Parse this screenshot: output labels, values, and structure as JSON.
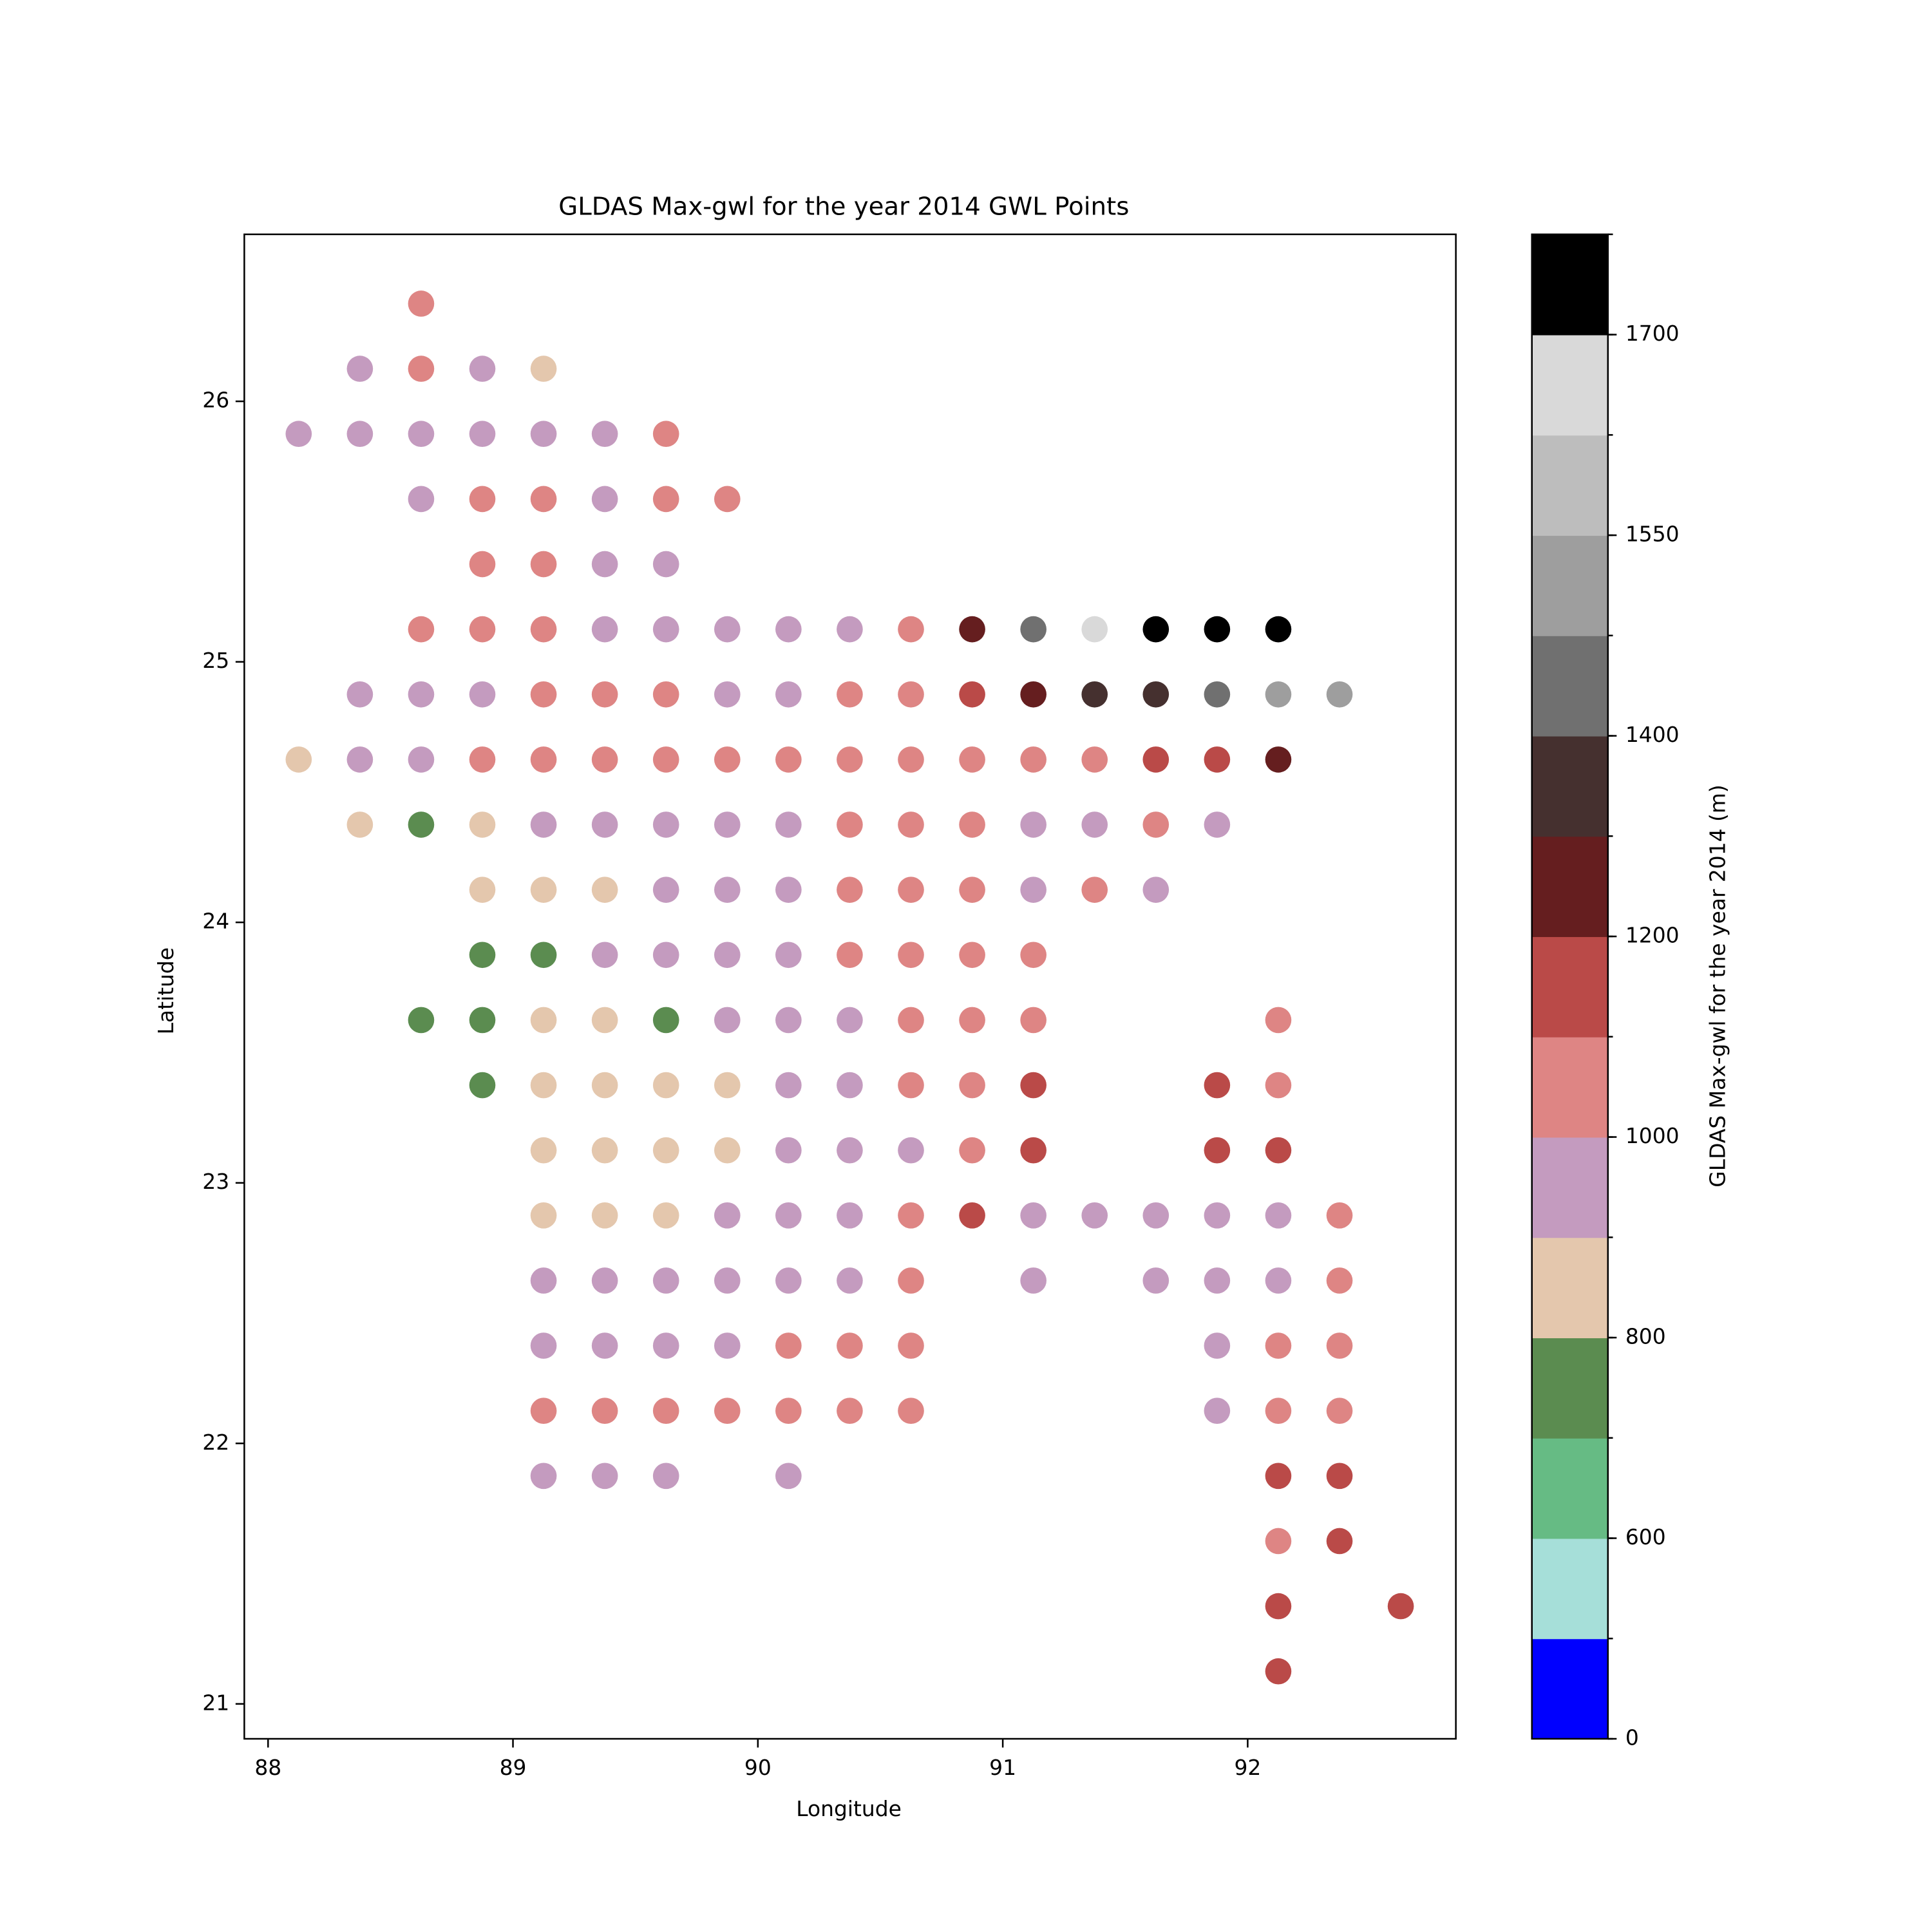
{
  "chart_data": {
    "type": "scatter",
    "title": "GLDAS Max-gwl for the year 2014 GWL Points",
    "x_label": "Longitude",
    "y_label": "Latitude",
    "xlim": [
      87.903,
      92.85
    ],
    "ylim": [
      20.866,
      26.641
    ],
    "xticks": [
      88,
      89,
      90,
      91,
      92
    ],
    "yticks": [
      21,
      22,
      23,
      24,
      25,
      26
    ],
    "x": [
      88.625,
      88.375,
      88.625,
      88.875,
      89.125,
      88.125,
      88.375,
      88.625,
      88.875,
      89.125,
      89.375,
      89.625,
      88.625,
      88.875,
      89.125,
      89.375,
      89.625,
      89.875,
      88.875,
      89.125,
      89.375,
      89.625,
      88.625,
      88.875,
      89.125,
      89.375,
      89.625,
      89.875,
      90.125,
      90.375,
      90.625,
      90.875,
      91.125,
      91.375,
      91.625,
      91.875,
      92.125,
      88.375,
      88.625,
      88.875,
      89.125,
      89.375,
      89.625,
      89.875,
      90.125,
      90.375,
      90.625,
      90.875,
      91.125,
      91.375,
      91.625,
      91.875,
      92.125,
      92.375,
      88.125,
      88.375,
      88.625,
      88.875,
      89.125,
      89.375,
      89.625,
      89.875,
      90.125,
      90.375,
      90.625,
      90.875,
      91.125,
      91.375,
      91.625,
      91.875,
      92.125,
      88.375,
      88.625,
      88.875,
      89.125,
      89.375,
      89.625,
      89.875,
      90.125,
      90.375,
      90.625,
      90.875,
      91.125,
      91.375,
      91.625,
      91.875,
      88.875,
      89.125,
      89.375,
      89.625,
      89.875,
      90.125,
      90.375,
      90.625,
      90.875,
      91.125,
      91.375,
      91.625,
      88.875,
      89.125,
      89.375,
      89.625,
      89.875,
      90.125,
      90.375,
      90.625,
      90.875,
      91.125,
      88.625,
      88.875,
      89.125,
      89.375,
      89.625,
      89.875,
      90.125,
      90.375,
      90.625,
      90.875,
      91.125,
      92.125,
      88.875,
      89.125,
      89.375,
      89.625,
      89.875,
      90.125,
      90.375,
      90.625,
      90.875,
      91.125,
      91.875,
      92.125,
      89.125,
      89.375,
      89.625,
      89.875,
      90.125,
      90.375,
      90.625,
      90.875,
      91.125,
      91.875,
      92.125,
      89.125,
      89.375,
      89.625,
      89.875,
      90.125,
      90.375,
      90.625,
      90.875,
      91.125,
      91.375,
      91.625,
      91.875,
      92.125,
      92.375,
      89.125,
      89.375,
      89.625,
      89.875,
      90.125,
      90.375,
      90.625,
      91.125,
      91.625,
      91.875,
      92.125,
      92.375,
      89.125,
      89.375,
      89.625,
      89.875,
      90.125,
      90.375,
      90.625,
      91.875,
      92.125,
      92.375,
      89.125,
      89.375,
      89.625,
      89.875,
      90.125,
      90.375,
      90.625,
      91.875,
      92.125,
      92.375,
      89.125,
      89.375,
      89.625,
      90.125,
      92.125,
      92.375,
      92.125,
      92.375,
      92.125,
      92.625,
      92.125
    ],
    "y": [
      26.375,
      26.125,
      26.125,
      26.125,
      26.125,
      25.875,
      25.875,
      25.875,
      25.875,
      25.875,
      25.875,
      25.875,
      25.625,
      25.625,
      25.625,
      25.625,
      25.625,
      25.625,
      25.375,
      25.375,
      25.375,
      25.375,
      25.125,
      25.125,
      25.125,
      25.125,
      25.125,
      25.125,
      25.125,
      25.125,
      25.125,
      25.125,
      25.125,
      25.125,
      25.125,
      25.125,
      25.125,
      24.875,
      24.875,
      24.875,
      24.875,
      24.875,
      24.875,
      24.875,
      24.875,
      24.875,
      24.875,
      24.875,
      24.875,
      24.875,
      24.875,
      24.875,
      24.875,
      24.875,
      24.625,
      24.625,
      24.625,
      24.625,
      24.625,
      24.625,
      24.625,
      24.625,
      24.625,
      24.625,
      24.625,
      24.625,
      24.625,
      24.625,
      24.625,
      24.625,
      24.625,
      24.375,
      24.375,
      24.375,
      24.375,
      24.375,
      24.375,
      24.375,
      24.375,
      24.375,
      24.375,
      24.375,
      24.375,
      24.375,
      24.375,
      24.375,
      24.125,
      24.125,
      24.125,
      24.125,
      24.125,
      24.125,
      24.125,
      24.125,
      24.125,
      24.125,
      24.125,
      24.125,
      23.875,
      23.875,
      23.875,
      23.875,
      23.875,
      23.875,
      23.875,
      23.875,
      23.875,
      23.875,
      23.625,
      23.625,
      23.625,
      23.625,
      23.625,
      23.625,
      23.625,
      23.625,
      23.625,
      23.625,
      23.625,
      23.625,
      23.375,
      23.375,
      23.375,
      23.375,
      23.375,
      23.375,
      23.375,
      23.375,
      23.375,
      23.375,
      23.375,
      23.375,
      23.125,
      23.125,
      23.125,
      23.125,
      23.125,
      23.125,
      23.125,
      23.125,
      23.125,
      23.125,
      23.125,
      22.875,
      22.875,
      22.875,
      22.875,
      22.875,
      22.875,
      22.875,
      22.875,
      22.875,
      22.875,
      22.875,
      22.875,
      22.875,
      22.875,
      22.625,
      22.625,
      22.625,
      22.625,
      22.625,
      22.625,
      22.625,
      22.625,
      22.625,
      22.625,
      22.625,
      22.625,
      22.375,
      22.375,
      22.375,
      22.375,
      22.375,
      22.375,
      22.375,
      22.375,
      22.375,
      22.375,
      22.125,
      22.125,
      22.125,
      22.125,
      22.125,
      22.125,
      22.125,
      22.125,
      22.125,
      22.125,
      21.875,
      21.875,
      21.875,
      21.875,
      21.875,
      21.875,
      21.625,
      21.625,
      21.375,
      21.375,
      21.125
    ],
    "values": [
      1050,
      950,
      1050,
      950,
      850,
      950,
      950,
      950,
      950,
      950,
      950,
      1050,
      950,
      1050,
      1050,
      950,
      1050,
      1050,
      1050,
      1050,
      950,
      950,
      1050,
      1050,
      1050,
      950,
      950,
      950,
      950,
      950,
      1050,
      1250,
      1440,
      1660,
      1750,
      1750,
      1750,
      950,
      950,
      950,
      1050,
      1050,
      1050,
      950,
      950,
      1050,
      1050,
      1150,
      1250,
      1350,
      1350,
      1440,
      1510,
      1510,
      850,
      950,
      950,
      1050,
      1050,
      1050,
      1050,
      1050,
      1050,
      1050,
      1050,
      1050,
      1050,
      1050,
      1150,
      1150,
      1250,
      850,
      750,
      850,
      950,
      950,
      950,
      950,
      950,
      1050,
      1050,
      1050,
      950,
      950,
      1050,
      950,
      850,
      850,
      850,
      950,
      950,
      950,
      1050,
      1050,
      1050,
      950,
      1050,
      950,
      750,
      750,
      950,
      950,
      950,
      950,
      1050,
      1050,
      1050,
      1050,
      750,
      750,
      850,
      850,
      750,
      950,
      950,
      950,
      1050,
      1050,
      1050,
      1050,
      750,
      850,
      850,
      850,
      850,
      950,
      950,
      1050,
      1050,
      1150,
      1150,
      1050,
      850,
      850,
      850,
      850,
      950,
      950,
      950,
      1050,
      1150,
      1150,
      1150,
      850,
      850,
      850,
      950,
      950,
      950,
      1050,
      1150,
      950,
      950,
      950,
      950,
      950,
      1050,
      950,
      950,
      950,
      950,
      950,
      950,
      1050,
      950,
      950,
      950,
      950,
      1050,
      950,
      950,
      950,
      950,
      1050,
      1050,
      1050,
      950,
      1050,
      1050,
      1050,
      1050,
      1050,
      1050,
      1050,
      1050,
      1050,
      950,
      1050,
      1050,
      950,
      950,
      950,
      950,
      1150,
      1150,
      1050,
      1150,
      1150,
      1150,
      1150
    ],
    "colorbar": {
      "label": "GLDAS Max-gwl for the year 2014 (m)",
      "levels": [
        0,
        500,
        600,
        700,
        800,
        900,
        1000,
        1100,
        1200,
        1300,
        1400,
        1475,
        1550,
        1625,
        1700,
        1775
      ],
      "colors": [
        "#0000ff",
        "#a6dfd9",
        "#66bb84",
        "#5b8c50",
        "#e4c7ad",
        "#c49bbf",
        "#de8584",
        "#ba4a48",
        "#651e1f",
        "#45302f",
        "#707070",
        "#9e9e9e",
        "#bdbdbd",
        "#d9d9d9",
        "#000000"
      ],
      "ticks": [
        0,
        600,
        800,
        1000,
        1200,
        1400,
        1550,
        1700
      ]
    }
  }
}
